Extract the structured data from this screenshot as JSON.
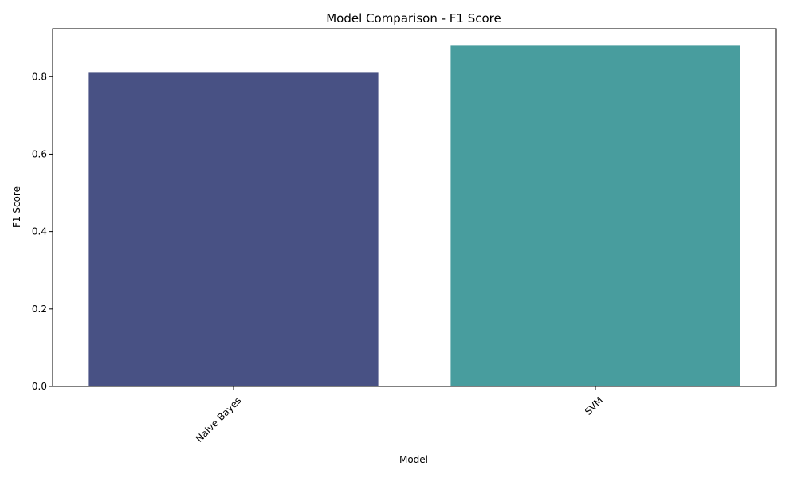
{
  "chart_data": {
    "type": "bar",
    "title": "Model Comparison - F1 Score",
    "xlabel": "Model",
    "ylabel": "F1 Score",
    "categories": [
      "Naive Bayes",
      "SVM"
    ],
    "values": [
      0.81,
      0.88
    ],
    "ylim": [
      0,
      0.924
    ],
    "yticks": [
      0.0,
      0.2,
      0.4,
      0.6,
      0.8
    ],
    "ytick_labels": [
      "0.0",
      "0.2",
      "0.4",
      "0.6",
      "0.8"
    ],
    "x_tick_rotation": 45,
    "grid": false,
    "legend": "none",
    "colors": [
      "#485184",
      "#489d9e"
    ]
  }
}
